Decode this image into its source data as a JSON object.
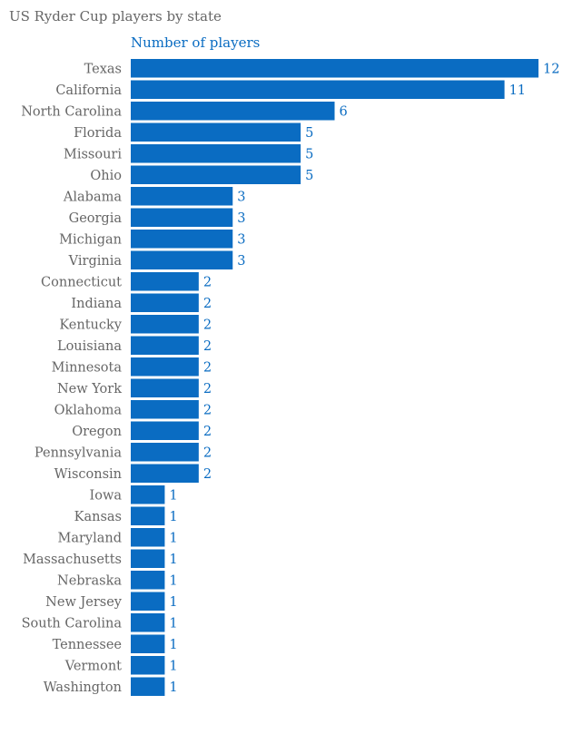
{
  "chart_data": {
    "type": "bar",
    "orientation": "horizontal",
    "title": "US Ryder Cup players by state",
    "subtitle": "Number of players",
    "xlabel": "",
    "ylabel": "",
    "xlim": [
      0,
      12
    ],
    "grid": false,
    "bar_color": "#0a6cc2",
    "categories": [
      "Texas",
      "California",
      "North Carolina",
      "Florida",
      "Missouri",
      "Ohio",
      "Alabama",
      "Georgia",
      "Michigan",
      "Virginia",
      "Connecticut",
      "Indiana",
      "Kentucky",
      "Louisiana",
      "Minnesota",
      "New York",
      "Oklahoma",
      "Oregon",
      "Pennsylvania",
      "Wisconsin",
      "Iowa",
      "Kansas",
      "Maryland",
      "Massachusetts",
      "Nebraska",
      "New Jersey",
      "South Carolina",
      "Tennessee",
      "Vermont",
      "Washington"
    ],
    "values": [
      12,
      11,
      6,
      5,
      5,
      5,
      3,
      3,
      3,
      3,
      2,
      2,
      2,
      2,
      2,
      2,
      2,
      2,
      2,
      2,
      1,
      1,
      1,
      1,
      1,
      1,
      1,
      1,
      1,
      1
    ]
  }
}
